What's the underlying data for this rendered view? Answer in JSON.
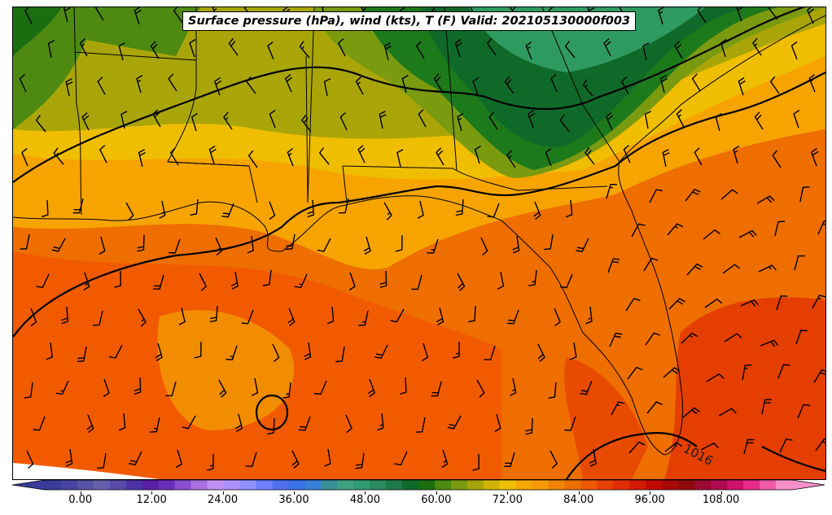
{
  "map": {
    "title": "Surface pressure (hPa), wind (kts), T (F) Valid: 202105130000f003",
    "isobar_label": "1016"
  },
  "colorbar": {
    "tick_labels": [
      "0.00",
      "12.00",
      "24.00",
      "36.00",
      "48.00",
      "60.00",
      "72.00",
      "84.00",
      "96.00",
      "108.00"
    ],
    "range": [
      -6,
      120
    ],
    "extend": "both",
    "colors": [
      "#3b3b9a",
      "#45449f",
      "#5753a6",
      "#6660ac",
      "#5a4aaa",
      "#4d33a6",
      "#5a1fa8",
      "#6a2fb8",
      "#8a4fd0",
      "#a870e0",
      "#c090f0",
      "#b090ff",
      "#9090ff",
      "#7080ff",
      "#5070f0",
      "#3a70e8",
      "#3a80d8",
      "#3a9098",
      "#40a080",
      "#309a70",
      "#2a8a60",
      "#1f7a4a",
      "#0f6a2a",
      "#1a6e10",
      "#4a8a10",
      "#7a9a10",
      "#a8a408",
      "#d2b400",
      "#efc000",
      "#f7a800",
      "#f79a00",
      "#f08400",
      "#ee7000",
      "#f05800",
      "#e84000",
      "#e02c00",
      "#d41a00",
      "#c00a00",
      "#a80808",
      "#900a0a",
      "#9a0a30",
      "#b00a50",
      "#d0106c",
      "#e82a8a",
      "#f05aa8",
      "#f890c8"
    ]
  }
}
